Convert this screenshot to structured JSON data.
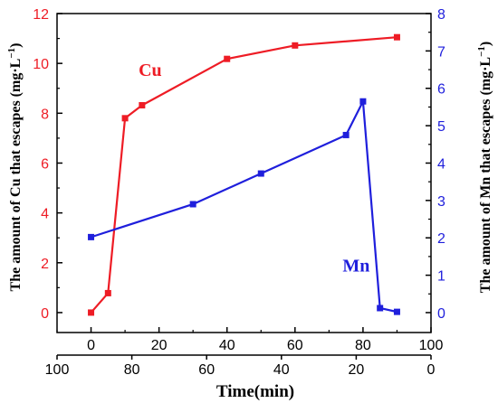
{
  "chart_data": {
    "type": "line",
    "left_axis": {
      "label": "The amount of Cu that escapes (mg·L",
      "label_sup": "−1",
      "label_close": ")",
      "ylim": [
        -0.8,
        12
      ],
      "ticks": [
        0,
        2,
        4,
        6,
        8,
        10,
        12
      ],
      "tick_labels": [
        "0",
        "2",
        "4",
        "6",
        "8",
        "10",
        "12"
      ],
      "color": "#ee1c25"
    },
    "right_axis": {
      "label": "The amount of Mn that escapes (mg·L",
      "label_sup": "−1",
      "label_close": ")",
      "ylim": [
        -0.533,
        8
      ],
      "ticks": [
        0,
        1,
        2,
        3,
        4,
        5,
        6,
        7,
        8
      ],
      "tick_labels": [
        "0",
        "1",
        "2",
        "3",
        "4",
        "5",
        "6",
        "7",
        "8"
      ],
      "color": "#1f1fdc"
    },
    "bottom_axis": {
      "xlim": [
        -10,
        100
      ],
      "ticks": [
        0,
        20,
        40,
        60,
        80,
        100
      ],
      "tick_labels": [
        "0",
        "20",
        "40",
        "60",
        "80",
        "100"
      ]
    },
    "secondary_bottom_axis": {
      "tick_labels": [
        "100",
        "80",
        "60",
        "40",
        "20",
        "0"
      ],
      "tick_positions_primary": [
        -10,
        12,
        34,
        56,
        78,
        100
      ]
    },
    "xlabel": "Time(min)",
    "series": [
      {
        "name": "Cu",
        "axis": "left",
        "color": "#ee1c25",
        "x": [
          0,
          5,
          10,
          15,
          40,
          60,
          90
        ],
        "y": [
          0.0,
          0.78,
          7.8,
          8.32,
          10.18,
          10.72,
          11.05
        ],
        "label_at": [
          14,
          9.5
        ]
      },
      {
        "name": "Mn",
        "axis": "right",
        "color": "#1f1fdc",
        "x": [
          0,
          30,
          50,
          75,
          80,
          85,
          90
        ],
        "y": [
          2.02,
          2.9,
          3.72,
          4.75,
          5.65,
          0.12,
          0.02
        ],
        "label_at": [
          74,
          1.1
        ]
      }
    ]
  }
}
